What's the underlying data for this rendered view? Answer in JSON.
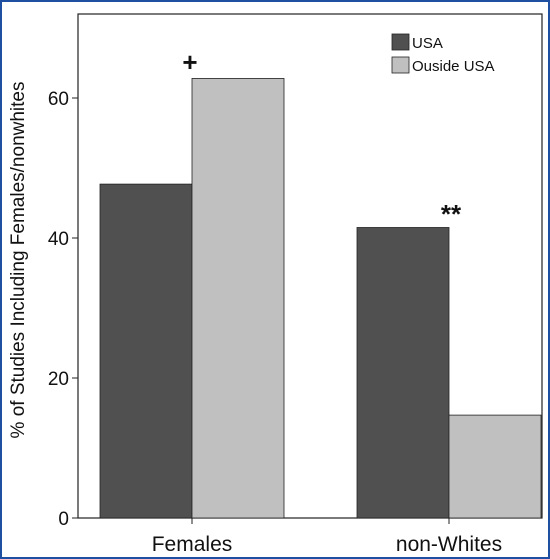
{
  "chart_data": {
    "type": "bar",
    "title": "",
    "xlabel": "",
    "ylabel": "% of Studies Including Females/nonwhites",
    "categories": [
      "Females",
      "non-Whites"
    ],
    "series": [
      {
        "name": "USA",
        "values": [
          47.7,
          41.5
        ],
        "color": "#505050"
      },
      {
        "name": "Ouside USA",
        "values": [
          62.8,
          14.7
        ],
        "color": "#c0c0c0"
      }
    ],
    "ylim": [
      0,
      72
    ],
    "yticks": [
      "0",
      "20",
      "40",
      "60"
    ],
    "annotations": [
      "+",
      "**"
    ],
    "grid": false,
    "legend_position": "top-right"
  }
}
